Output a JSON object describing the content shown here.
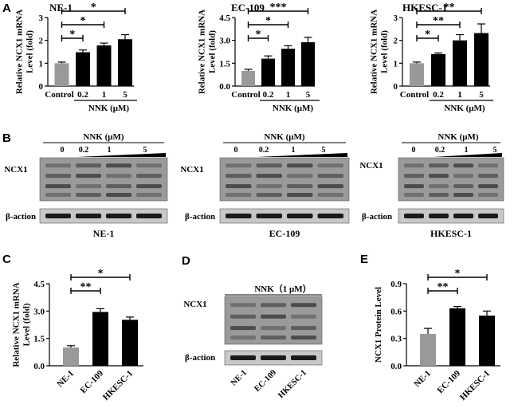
{
  "panel_letters": [
    "A",
    "B",
    "C",
    "D",
    "E"
  ],
  "chart_data": [
    {
      "id": "A1",
      "type": "bar",
      "title": "NE-1",
      "ylabel": "Relative NCX1 mRNA Level (fold)",
      "ylabel_lines": [
        "Relative NCX1 mRNA",
        "Level (fold)"
      ],
      "xlabel": "NNK (μM)",
      "categories": [
        "Control",
        "0.2",
        "1",
        "5"
      ],
      "values": [
        1.0,
        1.48,
        1.78,
        2.05
      ],
      "errors": [
        0.05,
        0.1,
        0.1,
        0.2
      ],
      "colors": [
        "#999999",
        "#000000",
        "#000000",
        "#000000"
      ],
      "ylim": [
        0,
        3
      ],
      "yticks": [
        0,
        1,
        2,
        3
      ],
      "ytick_labels": [
        "0",
        "1",
        "2",
        "3"
      ],
      "significance": [
        {
          "from": 0,
          "to": 1,
          "label": "*"
        },
        {
          "from": 0,
          "to": 2,
          "label": "*"
        },
        {
          "from": 0,
          "to": 3,
          "label": "*"
        }
      ]
    },
    {
      "id": "A2",
      "type": "bar",
      "title": "EC-109",
      "ylabel": "Relative NCX1 mRNA Level (fold)",
      "ylabel_lines": [
        "Relative NCX1 mRNA",
        "Level (fold)"
      ],
      "xlabel": "NNK (μM)",
      "categories": [
        "Control",
        "0.2",
        "1",
        "5"
      ],
      "values": [
        1.0,
        1.8,
        2.45,
        2.88
      ],
      "errors": [
        0.1,
        0.18,
        0.2,
        0.32
      ],
      "colors": [
        "#999999",
        "#000000",
        "#000000",
        "#000000"
      ],
      "ylim": [
        0,
        4.5
      ],
      "yticks": [
        0,
        1.5,
        3.0,
        4.5
      ],
      "ytick_labels": [
        "0.0",
        "1.5",
        "3.0",
        "4.5"
      ],
      "significance": [
        {
          "from": 0,
          "to": 1,
          "label": "*"
        },
        {
          "from": 0,
          "to": 2,
          "label": "*"
        },
        {
          "from": 0,
          "to": 3,
          "label": "***"
        }
      ]
    },
    {
      "id": "A3",
      "type": "bar",
      "title": "HKESC-1",
      "ylabel": "Relative NCX1 mRNA Level (fold)",
      "ylabel_lines": [
        "Relative NCX1 mRNA",
        "Level (fold)"
      ],
      "xlabel": "NNK (μM)",
      "categories": [
        "Control",
        "0.2",
        "1",
        "5"
      ],
      "values": [
        1.0,
        1.4,
        2.0,
        2.32
      ],
      "errors": [
        0.05,
        0.05,
        0.25,
        0.4
      ],
      "colors": [
        "#999999",
        "#000000",
        "#000000",
        "#000000"
      ],
      "ylim": [
        0,
        3
      ],
      "yticks": [
        0,
        1,
        2,
        3
      ],
      "ytick_labels": [
        "0",
        "1",
        "2",
        "3"
      ],
      "significance": [
        {
          "from": 0,
          "to": 1,
          "label": "*"
        },
        {
          "from": 0,
          "to": 2,
          "label": "**"
        },
        {
          "from": 0,
          "to": 3,
          "label": "**"
        }
      ]
    },
    {
      "id": "C",
      "type": "bar",
      "title": "",
      "ylabel": "Relative NCX1 mRNA Level (fold)",
      "ylabel_lines": [
        "Relative NCX1 mRNA",
        "Level (fold)"
      ],
      "xlabel": "",
      "categories": [
        "NE-1",
        "EC-109",
        "HKESC-1"
      ],
      "values": [
        1.0,
        2.95,
        2.52
      ],
      "errors": [
        0.1,
        0.18,
        0.15
      ],
      "colors": [
        "#999999",
        "#000000",
        "#000000"
      ],
      "ylim": [
        0,
        4.5
      ],
      "yticks": [
        0,
        1.5,
        3.0,
        4.5
      ],
      "ytick_labels": [
        "0.0",
        "1.5",
        "3.0",
        "4.5"
      ],
      "significance": [
        {
          "from": 0,
          "to": 1,
          "label": "**"
        },
        {
          "from": 0,
          "to": 2,
          "label": "*"
        }
      ]
    },
    {
      "id": "E",
      "type": "bar",
      "title": "",
      "ylabel": "NCX1 Protein Level",
      "ylabel_lines": [
        "NCX1 Protein Level"
      ],
      "xlabel": "",
      "categories": [
        "NE-1",
        "EC-109",
        "HKESC-1"
      ],
      "values": [
        0.35,
        0.63,
        0.55
      ],
      "errors": [
        0.06,
        0.02,
        0.05
      ],
      "colors": [
        "#999999",
        "#000000",
        "#000000"
      ],
      "ylim": [
        0,
        0.9
      ],
      "yticks": [
        0,
        0.3,
        0.6,
        0.9
      ],
      "ytick_labels": [
        "0.0",
        "0.3",
        "0.6",
        "0.9"
      ],
      "significance": [
        {
          "from": 0,
          "to": 1,
          "label": "**"
        },
        {
          "from": 0,
          "to": 2,
          "label": "*"
        }
      ]
    }
  ],
  "blots": [
    {
      "id": "B1",
      "header": "NNK (μM)",
      "lanes": [
        "0",
        "0.2",
        "1",
        "5"
      ],
      "protein": "NCX1",
      "control": "β-action",
      "cell_line": "NE-1"
    },
    {
      "id": "B2",
      "header": "NNK (μM)",
      "lanes": [
        "0",
        "0.2",
        "1",
        "5"
      ],
      "protein": "NCX1",
      "control": "β-action",
      "cell_line": "EC-109"
    },
    {
      "id": "B3",
      "header": "NNK (μM)",
      "lanes": [
        "0",
        "0.2",
        "1",
        "5"
      ],
      "protein": "NCX1",
      "control": "β-action",
      "cell_line": "HKESC-1"
    },
    {
      "id": "D",
      "header": "NNK（1 μM）",
      "lanes": [
        "NE-1",
        "EC-109",
        "HKESC-1"
      ],
      "protein": "NCX1",
      "control": "β-action",
      "cell_line": ""
    }
  ]
}
